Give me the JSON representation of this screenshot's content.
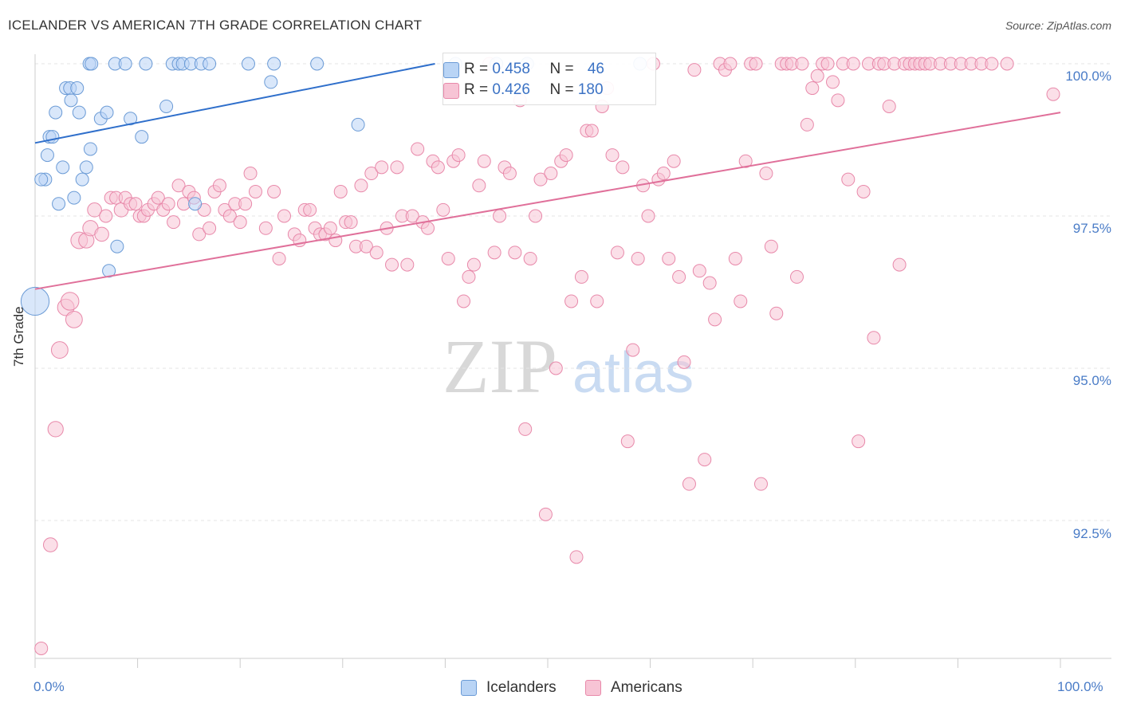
{
  "header": {
    "title": "ICELANDER VS AMERICAN 7TH GRADE CORRELATION CHART",
    "source": "Source: ZipAtlas.com"
  },
  "watermark": {
    "zip": "ZIP",
    "atlas": "atlas"
  },
  "colors": {
    "blue_fill": "#b9d4f5",
    "blue_stroke": "#6b9bd6",
    "blue_line": "#2f6fcb",
    "pink_fill": "#f7c4d5",
    "pink_stroke": "#e889aa",
    "pink_line": "#e0709a",
    "axis_text": "#4a7cc7",
    "grid": "#e6e6e6"
  },
  "legend": {
    "rows": [
      {
        "r_label": "R = ",
        "r_value": "0.458",
        "n_label": "N = ",
        "n_value": "46"
      },
      {
        "r_label": "R = ",
        "r_value": "0.426",
        "n_label": "N = ",
        "n_value": "180"
      }
    ],
    "bottom": [
      "Icelanders",
      "Americans"
    ]
  },
  "chart_data": {
    "type": "scatter",
    "title": "ICELANDER VS AMERICAN 7TH GRADE CORRELATION CHART",
    "xlabel": "",
    "ylabel": "7th Grade",
    "xlim": [
      0,
      100
    ],
    "ylim": [
      90.2,
      100.2
    ],
    "x_tick_labels": [
      "0.0%",
      "100.0%"
    ],
    "y_ticks": [
      92.5,
      95.0,
      97.5,
      100.0
    ],
    "y_tick_labels": [
      "92.5%",
      "95.0%",
      "97.5%",
      "100.0%"
    ],
    "grid": true,
    "legend_position": "top-center",
    "series": [
      {
        "name": "Icelanders",
        "r": 0.458,
        "n": 46,
        "trend": {
          "x0": 0,
          "y0": 98.7,
          "x1": 39,
          "y1": 100.0
        },
        "points": [
          [
            0,
            96.1,
            2.2
          ],
          [
            1.0,
            98.1,
            1
          ],
          [
            0.6,
            98.1,
            1
          ],
          [
            1.2,
            98.5,
            1
          ],
          [
            1.4,
            98.8,
            1
          ],
          [
            1.7,
            98.8,
            1
          ],
          [
            2.0,
            99.2,
            1
          ],
          [
            2.3,
            97.7,
            1
          ],
          [
            2.7,
            98.3,
            1
          ],
          [
            3.0,
            99.6,
            1
          ],
          [
            3.4,
            99.6,
            1
          ],
          [
            3.5,
            99.4,
            1
          ],
          [
            3.8,
            97.8,
            1
          ],
          [
            4.1,
            99.6,
            1
          ],
          [
            4.3,
            99.2,
            1
          ],
          [
            4.6,
            98.1,
            1
          ],
          [
            5.0,
            98.3,
            1
          ],
          [
            5.4,
            98.6,
            1
          ],
          [
            5.3,
            100.0,
            1
          ],
          [
            5.5,
            100.0,
            1
          ],
          [
            6.4,
            99.1,
            1
          ],
          [
            7.0,
            99.2,
            1
          ],
          [
            7.2,
            96.6,
            1
          ],
          [
            8.0,
            97.0,
            1
          ],
          [
            7.8,
            100.0,
            1
          ],
          [
            8.8,
            100.0,
            1
          ],
          [
            9.3,
            99.1,
            1
          ],
          [
            10.4,
            98.8,
            1
          ],
          [
            10.8,
            100.0,
            1
          ],
          [
            12.8,
            99.3,
            1
          ],
          [
            13.4,
            100.0,
            1
          ],
          [
            14.0,
            100.0,
            1
          ],
          [
            14.4,
            100.0,
            1
          ],
          [
            15.2,
            100.0,
            1
          ],
          [
            15.6,
            97.7,
            1
          ],
          [
            16.2,
            100.0,
            1
          ],
          [
            17.0,
            100.0,
            1
          ],
          [
            20.8,
            100.0,
            1
          ],
          [
            23.0,
            99.7,
            1
          ],
          [
            23.3,
            100.0,
            1
          ],
          [
            27.5,
            100.0,
            1
          ],
          [
            31.5,
            99.0,
            1
          ],
          [
            41.0,
            100.0,
            1
          ],
          [
            45.0,
            100.0,
            1
          ],
          [
            48.0,
            100.0,
            1
          ],
          [
            59.0,
            100.0,
            1
          ]
        ]
      },
      {
        "name": "Americans",
        "r": 0.426,
        "n": 180,
        "trend": {
          "x0": 0,
          "y0": 96.3,
          "x1": 100,
          "y1": 99.2
        },
        "points": [
          [
            0.6,
            90.4,
            1
          ],
          [
            1.5,
            92.1,
            1.1
          ],
          [
            2.0,
            94.0,
            1.2
          ],
          [
            2.4,
            95.3,
            1.3
          ],
          [
            3.0,
            96.0,
            1.3
          ],
          [
            3.4,
            96.1,
            1.4
          ],
          [
            3.8,
            95.8,
            1.3
          ],
          [
            4.3,
            97.1,
            1.3
          ],
          [
            5.0,
            97.1,
            1.2
          ],
          [
            5.4,
            97.3,
            1.2
          ],
          [
            5.8,
            97.6,
            1.1
          ],
          [
            6.5,
            97.2,
            1.1
          ],
          [
            6.9,
            97.5,
            1
          ],
          [
            7.4,
            97.8,
            1
          ],
          [
            7.9,
            97.8,
            1
          ],
          [
            8.4,
            97.6,
            1.1
          ],
          [
            8.8,
            97.8,
            1
          ],
          [
            9.3,
            97.7,
            1
          ],
          [
            9.8,
            97.7,
            1
          ],
          [
            10.2,
            97.5,
            1
          ],
          [
            10.6,
            97.5,
            1
          ],
          [
            11.0,
            97.6,
            1
          ],
          [
            11.6,
            97.7,
            1
          ],
          [
            12.0,
            97.8,
            1
          ],
          [
            12.5,
            97.6,
            1
          ],
          [
            13.0,
            97.7,
            1
          ],
          [
            13.5,
            97.4,
            1
          ],
          [
            14.0,
            98.0,
            1
          ],
          [
            14.5,
            97.7,
            1
          ],
          [
            15.0,
            97.9,
            1
          ],
          [
            15.5,
            97.8,
            1
          ],
          [
            16.0,
            97.2,
            1
          ],
          [
            16.5,
            97.6,
            1
          ],
          [
            17.0,
            97.3,
            1
          ],
          [
            17.5,
            97.9,
            1
          ],
          [
            18.0,
            98.0,
            1
          ],
          [
            18.5,
            97.6,
            1
          ],
          [
            19.0,
            97.5,
            1
          ],
          [
            19.5,
            97.7,
            1
          ],
          [
            20.0,
            97.4,
            1
          ],
          [
            20.5,
            97.7,
            1
          ],
          [
            21.0,
            98.2,
            1
          ],
          [
            21.5,
            97.9,
            1
          ],
          [
            22.5,
            97.3,
            1
          ],
          [
            23.3,
            97.9,
            1
          ],
          [
            23.8,
            96.8,
            1
          ],
          [
            24.3,
            97.5,
            1
          ],
          [
            25.3,
            97.2,
            1
          ],
          [
            25.8,
            97.1,
            1
          ],
          [
            26.3,
            97.6,
            1
          ],
          [
            26.8,
            97.6,
            1
          ],
          [
            27.3,
            97.3,
            1
          ],
          [
            27.8,
            97.2,
            1
          ],
          [
            28.3,
            97.2,
            1
          ],
          [
            28.8,
            97.3,
            1
          ],
          [
            29.3,
            97.1,
            1
          ],
          [
            29.8,
            97.9,
            1
          ],
          [
            30.3,
            97.4,
            1
          ],
          [
            30.8,
            97.4,
            1
          ],
          [
            31.3,
            97.0,
            1
          ],
          [
            31.8,
            98.0,
            1
          ],
          [
            32.3,
            97.0,
            1
          ],
          [
            32.8,
            98.2,
            1
          ],
          [
            33.3,
            96.9,
            1
          ],
          [
            33.8,
            98.3,
            1
          ],
          [
            34.3,
            97.3,
            1
          ],
          [
            34.8,
            96.7,
            1
          ],
          [
            35.3,
            98.3,
            1
          ],
          [
            35.8,
            97.5,
            1
          ],
          [
            36.3,
            96.7,
            1
          ],
          [
            36.8,
            97.5,
            1
          ],
          [
            37.3,
            98.6,
            1
          ],
          [
            37.8,
            97.4,
            1
          ],
          [
            38.3,
            97.3,
            1
          ],
          [
            38.8,
            98.4,
            1
          ],
          [
            39.3,
            98.3,
            1
          ],
          [
            39.8,
            97.6,
            1
          ],
          [
            40.3,
            96.8,
            1
          ],
          [
            40.8,
            98.4,
            1
          ],
          [
            41.3,
            98.5,
            1
          ],
          [
            41.8,
            96.1,
            1
          ],
          [
            42.3,
            96.5,
            1
          ],
          [
            42.8,
            96.7,
            1
          ],
          [
            43.3,
            98.0,
            1
          ],
          [
            43.8,
            98.4,
            1
          ],
          [
            44.3,
            100.0,
            1
          ],
          [
            44.8,
            96.9,
            1
          ],
          [
            45.3,
            97.5,
            1
          ],
          [
            45.8,
            98.3,
            1
          ],
          [
            46.3,
            98.2,
            1
          ],
          [
            46.8,
            96.9,
            1
          ],
          [
            47.3,
            99.4,
            1
          ],
          [
            47.8,
            94.0,
            1
          ],
          [
            48.3,
            96.8,
            1
          ],
          [
            48.8,
            97.5,
            1
          ],
          [
            49.3,
            98.1,
            1
          ],
          [
            49.8,
            92.6,
            1
          ],
          [
            50.3,
            98.2,
            1
          ],
          [
            50.8,
            95.0,
            1
          ],
          [
            51.3,
            98.4,
            1
          ],
          [
            51.8,
            98.5,
            1
          ],
          [
            52.3,
            96.1,
            1
          ],
          [
            52.8,
            91.9,
            1
          ],
          [
            53.3,
            96.5,
            1
          ],
          [
            53.8,
            98.9,
            1
          ],
          [
            54.3,
            98.9,
            1
          ],
          [
            54.8,
            96.1,
            1
          ],
          [
            55.3,
            99.3,
            1
          ],
          [
            55.8,
            99.6,
            1
          ],
          [
            56.3,
            98.5,
            1
          ],
          [
            56.8,
            96.9,
            1
          ],
          [
            57.3,
            98.3,
            1
          ],
          [
            57.8,
            93.8,
            1
          ],
          [
            58.3,
            95.3,
            1
          ],
          [
            58.8,
            96.8,
            1
          ],
          [
            59.3,
            98.0,
            1
          ],
          [
            59.8,
            97.5,
            1
          ],
          [
            60.3,
            100.0,
            1
          ],
          [
            60.8,
            98.1,
            1
          ],
          [
            61.3,
            98.2,
            1
          ],
          [
            61.8,
            96.8,
            1
          ],
          [
            62.3,
            98.4,
            1
          ],
          [
            62.8,
            96.5,
            1
          ],
          [
            63.3,
            95.1,
            1
          ],
          [
            63.8,
            93.1,
            1
          ],
          [
            64.3,
            99.9,
            1
          ],
          [
            64.8,
            96.6,
            1
          ],
          [
            65.3,
            93.5,
            1
          ],
          [
            65.8,
            96.4,
            1
          ],
          [
            66.3,
            95.8,
            1
          ],
          [
            66.8,
            100.0,
            1
          ],
          [
            67.3,
            99.9,
            1
          ],
          [
            67.8,
            100.0,
            1
          ],
          [
            68.3,
            96.8,
            1
          ],
          [
            68.8,
            96.1,
            1
          ],
          [
            69.3,
            98.4,
            1
          ],
          [
            69.8,
            100.0,
            1
          ],
          [
            70.3,
            100.0,
            1
          ],
          [
            70.8,
            93.1,
            1
          ],
          [
            71.3,
            98.2,
            1
          ],
          [
            71.8,
            97.0,
            1
          ],
          [
            72.3,
            95.9,
            1
          ],
          [
            72.8,
            100.0,
            1
          ],
          [
            73.3,
            100.0,
            1
          ],
          [
            73.8,
            100.0,
            1
          ],
          [
            74.3,
            96.5,
            1
          ],
          [
            74.8,
            100.0,
            1
          ],
          [
            75.3,
            99.0,
            1
          ],
          [
            75.8,
            99.6,
            1
          ],
          [
            76.3,
            99.8,
            1
          ],
          [
            76.8,
            100.0,
            1
          ],
          [
            77.3,
            100.0,
            1
          ],
          [
            77.8,
            99.7,
            1
          ],
          [
            78.3,
            99.4,
            1
          ],
          [
            78.8,
            100.0,
            1
          ],
          [
            79.3,
            98.1,
            1
          ],
          [
            79.8,
            100.0,
            1
          ],
          [
            80.3,
            93.8,
            1
          ],
          [
            80.8,
            97.9,
            1
          ],
          [
            81.3,
            100.0,
            1
          ],
          [
            81.8,
            95.5,
            1
          ],
          [
            82.3,
            100.0,
            1
          ],
          [
            82.8,
            100.0,
            1
          ],
          [
            83.3,
            99.3,
            1
          ],
          [
            83.8,
            100.0,
            1
          ],
          [
            84.3,
            96.7,
            1
          ],
          [
            84.8,
            100.0,
            1
          ],
          [
            85.3,
            100.0,
            1
          ],
          [
            85.8,
            100.0,
            1
          ],
          [
            86.3,
            100.0,
            1
          ],
          [
            86.8,
            100.0,
            1
          ],
          [
            87.3,
            100.0,
            1
          ],
          [
            88.3,
            100.0,
            1
          ],
          [
            89.3,
            100.0,
            1
          ],
          [
            90.3,
            100.0,
            1
          ],
          [
            91.3,
            100.0,
            1
          ],
          [
            92.3,
            100.0,
            1
          ],
          [
            93.3,
            100.0,
            1
          ],
          [
            94.8,
            100.0,
            1
          ],
          [
            99.3,
            99.5,
            1
          ]
        ]
      }
    ]
  }
}
